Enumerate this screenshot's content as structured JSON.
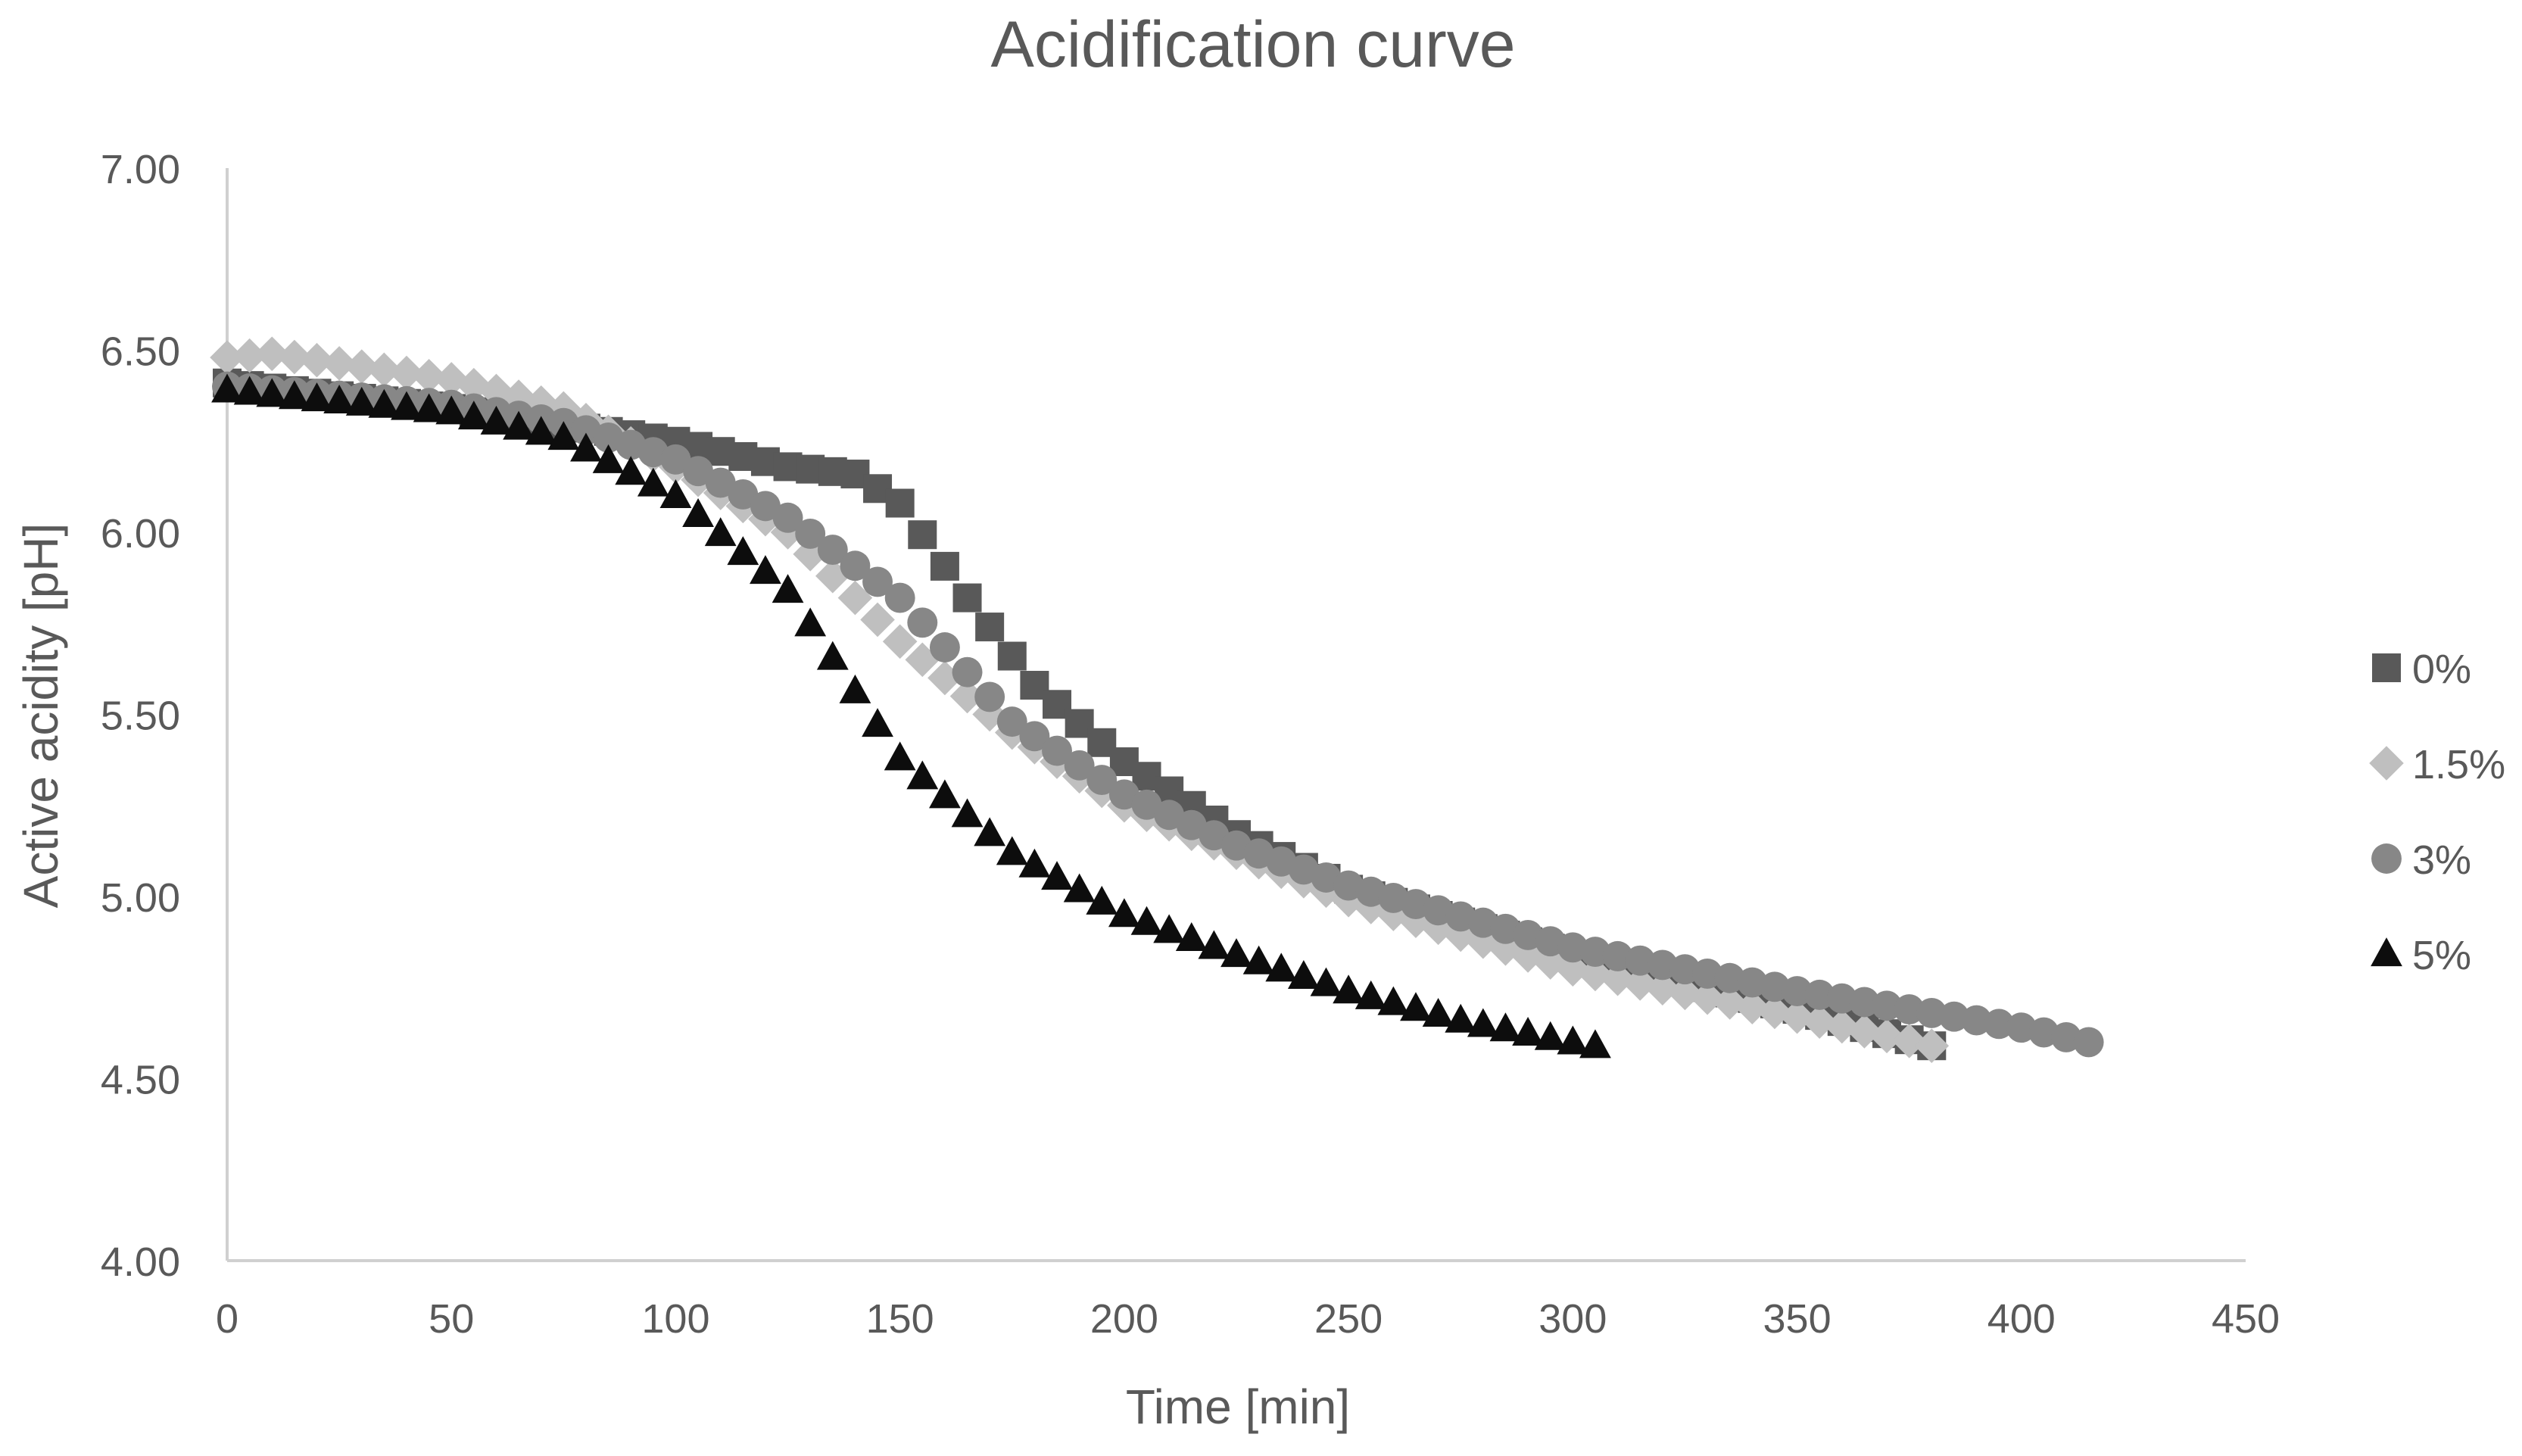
{
  "chart_data": {
    "type": "scatter",
    "title": "Acidification curve",
    "xlabel": "Time [min]",
    "ylabel": "Active acidity [pH]",
    "xlim": [
      0,
      450
    ],
    "ylim": [
      4.0,
      7.0
    ],
    "x_ticks": [
      0,
      50,
      100,
      150,
      200,
      250,
      300,
      350,
      400,
      450
    ],
    "y_ticks": [
      4.0,
      4.5,
      5.0,
      5.5,
      6.0,
      6.5,
      7.0
    ],
    "x_tick_labels": [
      "0",
      "50",
      "100",
      "150",
      "200",
      "250",
      "300",
      "350",
      "400",
      "450"
    ],
    "y_tick_labels": [
      "4.00",
      "4.50",
      "5.00",
      "5.50",
      "6.00",
      "6.50",
      "7.00"
    ],
    "grid": false,
    "legend_position": "right",
    "sampling_interval_min": 5,
    "series": [
      {
        "name": "0%",
        "marker": "square",
        "color": "#595959",
        "keypoints": [
          [
            0,
            6.41
          ],
          [
            50,
            6.34
          ],
          [
            100,
            6.25
          ],
          [
            125,
            6.18
          ],
          [
            140,
            6.16
          ],
          [
            150,
            6.08
          ],
          [
            165,
            5.82
          ],
          [
            180,
            5.58
          ],
          [
            200,
            5.37
          ],
          [
            225,
            5.17
          ],
          [
            250,
            5.02
          ],
          [
            300,
            4.84
          ],
          [
            350,
            4.69
          ],
          [
            380,
            4.59
          ]
        ]
      },
      {
        "name": "1.5%",
        "marker": "diamond",
        "color": "#bfbfbf",
        "keypoints": [
          [
            0,
            6.48
          ],
          [
            10,
            6.49
          ],
          [
            50,
            6.42
          ],
          [
            75,
            6.34
          ],
          [
            100,
            6.18
          ],
          [
            125,
            6.0
          ],
          [
            150,
            5.7
          ],
          [
            175,
            5.45
          ],
          [
            200,
            5.25
          ],
          [
            250,
            4.99
          ],
          [
            300,
            4.8
          ],
          [
            350,
            4.67
          ],
          [
            380,
            4.59
          ]
        ]
      },
      {
        "name": "3%",
        "marker": "circle",
        "color": "#878787",
        "keypoints": [
          [
            0,
            6.4
          ],
          [
            50,
            6.35
          ],
          [
            75,
            6.3
          ],
          [
            100,
            6.2
          ],
          [
            125,
            6.04
          ],
          [
            150,
            5.82
          ],
          [
            175,
            5.48
          ],
          [
            200,
            5.28
          ],
          [
            225,
            5.14
          ],
          [
            250,
            5.03
          ],
          [
            300,
            4.86
          ],
          [
            350,
            4.74
          ],
          [
            400,
            4.64
          ],
          [
            415,
            4.6
          ]
        ]
      },
      {
        "name": "5%",
        "marker": "triangle",
        "color": "#0d0d0d",
        "keypoints": [
          [
            0,
            6.39
          ],
          [
            50,
            6.33
          ],
          [
            75,
            6.26
          ],
          [
            100,
            6.1
          ],
          [
            125,
            5.84
          ],
          [
            150,
            5.38
          ],
          [
            175,
            5.12
          ],
          [
            200,
            4.95
          ],
          [
            225,
            4.84
          ],
          [
            250,
            4.74
          ],
          [
            275,
            4.66
          ],
          [
            300,
            4.6
          ],
          [
            305,
            4.59
          ]
        ]
      }
    ]
  }
}
